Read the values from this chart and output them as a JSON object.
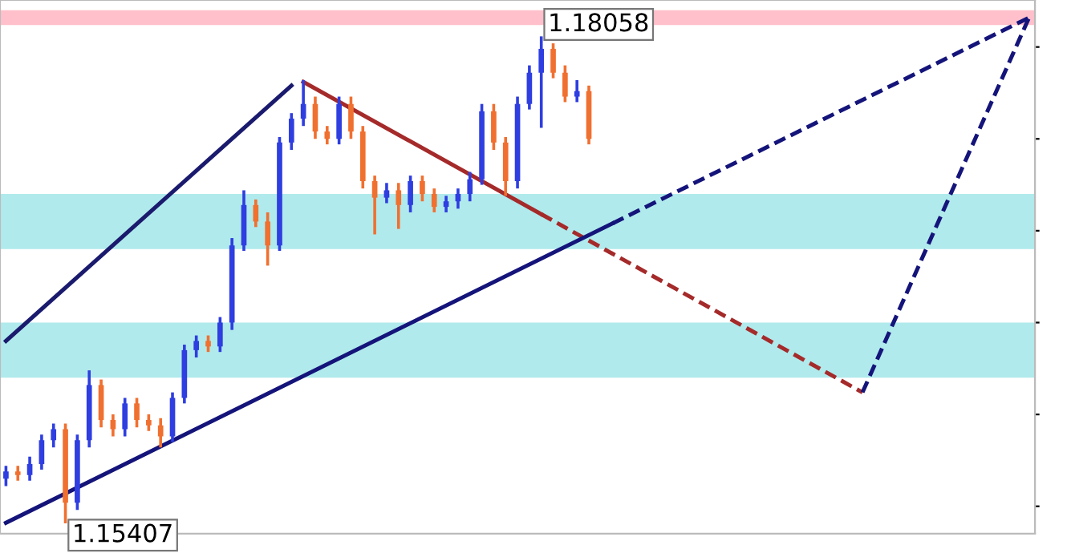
{
  "chart_data": {
    "type": "candlestick",
    "categories": [
      null,
      null,
      null,
      null,
      null,
      null,
      null,
      null,
      null,
      null,
      null,
      null,
      null,
      null,
      null,
      null,
      null,
      null,
      null,
      null,
      null,
      null,
      null,
      null,
      null,
      null,
      null,
      null,
      null,
      null,
      null,
      null,
      null,
      null,
      null,
      null,
      null,
      null,
      null,
      null,
      null,
      null,
      null,
      null,
      null,
      null,
      null,
      null,
      null,
      null,
      null,
      null,
      null,
      null,
      null,
      null,
      null,
      null,
      null,
      null,
      null,
      null,
      null,
      null,
      null,
      null,
      null,
      null,
      null,
      null,
      null,
      null,
      null,
      null,
      null,
      null,
      null,
      null,
      null,
      null,
      null,
      null,
      null,
      null,
      null,
      null,
      null
    ],
    "ohlc": [
      [
        1.1565,
        1.1572,
        1.1561,
        1.1569
      ],
      [
        1.1569,
        1.1572,
        1.1564,
        1.1567
      ],
      [
        1.1567,
        1.1577,
        1.1564,
        1.1573
      ],
      [
        1.1573,
        1.1589,
        1.157,
        1.1586
      ],
      [
        1.1586,
        1.1595,
        1.1582,
        1.1592
      ],
      [
        1.1592,
        1.1595,
        1.15407,
        1.1552
      ],
      [
        1.1552,
        1.1589,
        1.1548,
        1.1586
      ],
      [
        1.1586,
        1.1624,
        1.1582,
        1.1616
      ],
      [
        1.1616,
        1.1619,
        1.1593,
        1.1597
      ],
      [
        1.1597,
        1.16,
        1.1588,
        1.1592
      ],
      [
        1.1592,
        1.1609,
        1.1588,
        1.1606
      ],
      [
        1.1606,
        1.1609,
        1.1593,
        1.1597
      ],
      [
        1.1597,
        1.16,
        1.1591,
        1.1594
      ],
      [
        1.1594,
        1.1598,
        1.1582,
        1.1588
      ],
      [
        1.1588,
        1.1612,
        1.1585,
        1.1609
      ],
      [
        1.1609,
        1.1638,
        1.1606,
        1.1635
      ],
      [
        1.1635,
        1.1643,
        1.1631,
        1.164
      ],
      [
        1.164,
        1.1643,
        1.1634,
        1.1637
      ],
      [
        1.1637,
        1.1653,
        1.1634,
        1.165
      ],
      [
        1.165,
        1.1696,
        1.1646,
        1.1692
      ],
      [
        1.1692,
        1.1722,
        1.1689,
        1.1714
      ],
      [
        1.1714,
        1.1717,
        1.1702,
        1.1705
      ],
      [
        1.1705,
        1.171,
        1.1681,
        1.1692
      ],
      [
        1.1692,
        1.1751,
        1.1689,
        1.1748
      ],
      [
        1.1748,
        1.1764,
        1.1744,
        1.1761
      ],
      [
        1.1761,
        1.1782,
        1.1757,
        1.1769
      ],
      [
        1.1769,
        1.1773,
        1.175,
        1.1754
      ],
      [
        1.1754,
        1.1757,
        1.1747,
        1.175
      ],
      [
        1.175,
        1.1773,
        1.1747,
        1.1769
      ],
      [
        1.1769,
        1.1773,
        1.175,
        1.1754
      ],
      [
        1.1754,
        1.1757,
        1.1723,
        1.1727
      ],
      [
        1.1727,
        1.173,
        1.1698,
        1.1718
      ],
      [
        1.1718,
        1.1726,
        1.1715,
        1.1722
      ],
      [
        1.1722,
        1.1726,
        1.1701,
        1.1714
      ],
      [
        1.1714,
        1.173,
        1.171,
        1.1727
      ],
      [
        1.1727,
        1.173,
        1.1716,
        1.172
      ],
      [
        1.172,
        1.1723,
        1.171,
        1.1713
      ],
      [
        1.1713,
        1.1719,
        1.171,
        1.1716
      ],
      [
        1.1716,
        1.1723,
        1.1712,
        1.172
      ],
      [
        1.172,
        1.1732,
        1.1716,
        1.1728
      ],
      [
        1.1728,
        1.1769,
        1.1725,
        1.1765
      ],
      [
        1.1765,
        1.1769,
        1.1744,
        1.1748
      ],
      [
        1.1748,
        1.1751,
        1.1719,
        1.1727
      ],
      [
        1.1727,
        1.1773,
        1.1723,
        1.1769
      ],
      [
        1.1769,
        1.179,
        1.1766,
        1.1786
      ],
      [
        1.1786,
        1.18058,
        1.1756,
        1.1799
      ],
      [
        1.1799,
        1.1802,
        1.1783,
        1.1786
      ],
      [
        1.1786,
        1.179,
        1.177,
        1.1773
      ],
      [
        1.1773,
        1.1782,
        1.177,
        1.1776
      ],
      [
        1.1776,
        1.1779,
        1.1747,
        1.175
      ],
      null,
      null,
      null,
      null,
      null,
      null,
      null,
      null,
      null,
      null,
      null,
      null,
      null,
      null,
      null,
      null,
      null,
      null,
      null,
      null,
      null,
      null,
      null,
      null,
      null,
      null,
      null,
      null,
      null,
      null,
      null,
      null,
      null,
      null,
      null,
      null,
      null
    ],
    "colors": [
      "#2e3ee0",
      "#f07030",
      "#2e3ee0",
      "#2e3ee0",
      "#2e3ee0",
      "#f07030",
      "#2e3ee0",
      "#2e3ee0",
      "#f07030",
      "#f07030",
      "#2e3ee0",
      "#f07030",
      "#f07030",
      "#f07030",
      "#2e3ee0",
      "#2e3ee0",
      "#2e3ee0",
      "#f07030",
      "#2e3ee0",
      "#2e3ee0",
      "#2e3ee0",
      "#f07030",
      "#f07030",
      "#2e3ee0",
      "#2e3ee0",
      "#2e3ee0",
      "#f07030",
      "#f07030",
      "#2e3ee0",
      "#f07030",
      "#f07030",
      "#f07030",
      "#2e3ee0",
      "#f07030",
      "#2e3ee0",
      "#f07030",
      "#f07030",
      "#2e3ee0",
      "#2e3ee0",
      "#2e3ee0",
      "#2e3ee0",
      "#f07030",
      "#f07030",
      "#2e3ee0",
      "#2e3ee0",
      "#2e3ee0",
      "#f07030",
      "#f07030",
      "#2e3ee0",
      "#f07030",
      null,
      null,
      null,
      null,
      null,
      null,
      null,
      null,
      null,
      null,
      null,
      null,
      null,
      null,
      null,
      null,
      null,
      null,
      null,
      null,
      null,
      null,
      null,
      null,
      null,
      null,
      null,
      null,
      null,
      null,
      null,
      null,
      null,
      null,
      null,
      null,
      null
    ],
    "series": [
      {
        "type": "line",
        "color": "#1a1a6e",
        "line_style": "solid",
        "values": [
          1.164,
          null,
          null,
          null,
          null,
          null,
          null,
          null,
          null,
          null,
          null,
          null,
          null,
          null,
          null,
          null,
          null,
          null,
          null,
          null,
          null,
          null,
          null,
          null,
          1.1779,
          null,
          null,
          null,
          null,
          null,
          null,
          null,
          null,
          null,
          null,
          null,
          null,
          null,
          null,
          null,
          null,
          null,
          null,
          null,
          null,
          null,
          null,
          null,
          null,
          null,
          null,
          null,
          null,
          null,
          null,
          null,
          null,
          null,
          null,
          null,
          null,
          null,
          null,
          null,
          null,
          null,
          null,
          null,
          null,
          null,
          null,
          null,
          null,
          null,
          null,
          null,
          null,
          null,
          null,
          null,
          null,
          null,
          null,
          null,
          null,
          null,
          null
        ]
      },
      {
        "type": "line",
        "color": "#a52a2a",
        "line_style": "solid",
        "values": [
          null,
          null,
          null,
          null,
          null,
          null,
          null,
          null,
          null,
          null,
          null,
          null,
          null,
          null,
          null,
          null,
          null,
          null,
          null,
          null,
          null,
          null,
          null,
          null,
          null,
          1.1781,
          null,
          null,
          null,
          null,
          null,
          null,
          null,
          null,
          null,
          null,
          null,
          null,
          null,
          null,
          null,
          null,
          null,
          null,
          null,
          1.1709,
          null,
          null,
          null,
          null,
          null,
          null,
          null,
          null,
          null,
          null,
          null,
          null,
          null,
          null,
          null,
          null,
          null,
          null,
          null,
          null,
          null,
          null,
          null,
          null,
          null,
          null,
          null,
          null,
          null,
          null,
          null,
          null,
          null,
          null,
          null,
          null,
          null,
          null,
          null,
          null,
          null
        ]
      },
      {
        "type": "line",
        "color": "#a52a2a",
        "line_style": "dashed",
        "values": [
          null,
          null,
          null,
          null,
          null,
          null,
          null,
          null,
          null,
          null,
          null,
          null,
          null,
          null,
          null,
          null,
          null,
          null,
          null,
          null,
          null,
          null,
          null,
          null,
          null,
          null,
          null,
          null,
          null,
          null,
          null,
          null,
          null,
          null,
          null,
          null,
          null,
          null,
          null,
          null,
          null,
          null,
          null,
          null,
          null,
          1.1709,
          null,
          null,
          null,
          null,
          null,
          null,
          null,
          null,
          null,
          null,
          null,
          null,
          null,
          null,
          null,
          null,
          null,
          null,
          null,
          null,
          null,
          null,
          null,
          null,
          null,
          null,
          1.1612,
          null,
          null,
          null,
          null,
          null,
          null,
          null,
          null,
          null,
          null,
          null,
          null,
          null,
          null
        ]
      },
      {
        "type": "line",
        "color": "#14147a",
        "line_style": "solid",
        "values": [
          1.1541,
          null,
          null,
          null,
          null,
          null,
          null,
          null,
          null,
          null,
          null,
          null,
          null,
          null,
          null,
          null,
          null,
          null,
          null,
          null,
          null,
          null,
          null,
          null,
          null,
          null,
          null,
          null,
          null,
          null,
          null,
          null,
          null,
          null,
          null,
          null,
          null,
          null,
          null,
          null,
          null,
          null,
          null,
          null,
          null,
          null,
          null,
          null,
          null,
          null,
          null,
          1.1704,
          null,
          null,
          null,
          null,
          null,
          null,
          null,
          null,
          null,
          null,
          null,
          null,
          null,
          null,
          null,
          null,
          null,
          null,
          null,
          null,
          null,
          null,
          null,
          null,
          null,
          null,
          null,
          null,
          null,
          null,
          null,
          null,
          null,
          null,
          null
        ]
      },
      {
        "type": "line",
        "color": "#14147a",
        "line_style": "dashed",
        "values": [
          null,
          null,
          null,
          null,
          null,
          null,
          null,
          null,
          null,
          null,
          null,
          null,
          null,
          null,
          null,
          null,
          null,
          null,
          null,
          null,
          null,
          null,
          null,
          null,
          null,
          null,
          null,
          null,
          null,
          null,
          null,
          null,
          null,
          null,
          null,
          null,
          null,
          null,
          null,
          null,
          null,
          null,
          null,
          null,
          null,
          null,
          null,
          null,
          null,
          null,
          null,
          1.1704,
          null,
          null,
          null,
          null,
          null,
          null,
          null,
          null,
          null,
          null,
          null,
          null,
          null,
          null,
          null,
          null,
          null,
          null,
          null,
          null,
          null,
          null,
          null,
          null,
          null,
          null,
          null,
          null,
          null,
          null,
          null,
          null,
          null,
          null,
          1.1816
        ]
      },
      {
        "type": "line",
        "color": "#14147a",
        "line_style": "dashed",
        "values": [
          null,
          null,
          null,
          null,
          null,
          null,
          null,
          null,
          null,
          null,
          null,
          null,
          null,
          null,
          null,
          null,
          null,
          null,
          null,
          null,
          null,
          null,
          null,
          null,
          null,
          null,
          null,
          null,
          null,
          null,
          null,
          null,
          null,
          null,
          null,
          null,
          null,
          null,
          null,
          null,
          null,
          null,
          null,
          null,
          null,
          null,
          null,
          null,
          null,
          null,
          null,
          null,
          null,
          null,
          null,
          null,
          null,
          null,
          null,
          null,
          null,
          null,
          null,
          null,
          null,
          null,
          null,
          null,
          null,
          null,
          null,
          null,
          1.1612,
          null,
          null,
          null,
          null,
          null,
          null,
          null,
          null,
          null,
          null,
          null,
          null,
          null,
          1.1816
        ]
      }
    ],
    "bands": [
      {
        "axis": "y",
        "from": 1.1812,
        "to": 1.182,
        "color": "#ffc0cb"
      },
      {
        "axis": "y",
        "from": 1.169,
        "to": 1.172,
        "color": "#b0eaec"
      },
      {
        "axis": "y",
        "from": 1.162,
        "to": 1.165,
        "color": "#b0eaec"
      }
    ],
    "annotations": [
      "1.18058",
      "1.15407"
    ],
    "tick_labels": false,
    "legend": false,
    "grid": false
  }
}
